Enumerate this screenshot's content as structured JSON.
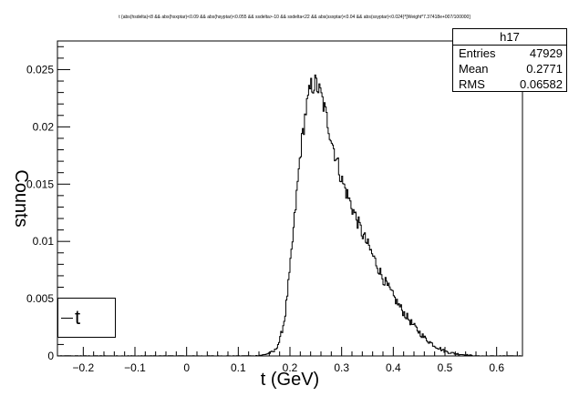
{
  "chart_data": {
    "type": "line",
    "title": "t {abs(hsdelta)<8 && abs(hsxptar)<0.09 && abs(hsyptar)<0.055 && ssdelta>-10 && ssdelta<22 && abs(ssxptar)<0.04 && abs(ssyptar)<0.024}*[Weight*7.37418e+007/100000]",
    "xlabel": "t (GeV)",
    "ylabel": "Counts",
    "xlim": [
      -0.25,
      0.65
    ],
    "ylim": [
      0,
      0.0275
    ],
    "xticks": [
      "−0.2",
      "−0.1",
      "0",
      "0.1",
      "0.2",
      "0.3",
      "0.4",
      "0.5",
      "0.6"
    ],
    "yticks": [
      "0",
      "0.005",
      "0.01",
      "0.015",
      "0.02",
      "0.025"
    ],
    "x": [
      -0.25,
      -0.2,
      -0.15,
      -0.1,
      -0.05,
      0.0,
      0.05,
      0.1,
      0.13,
      0.15,
      0.17,
      0.18,
      0.19,
      0.2,
      0.21,
      0.22,
      0.23,
      0.24,
      0.25,
      0.26,
      0.27,
      0.28,
      0.29,
      0.3,
      0.32,
      0.34,
      0.36,
      0.38,
      0.4,
      0.42,
      0.44,
      0.46,
      0.48,
      0.5,
      0.52,
      0.54,
      0.56,
      0.6,
      0.65
    ],
    "values": [
      0.0,
      0.0,
      0.0,
      0.0,
      0.0,
      0.0,
      0.0,
      0.0,
      0.0,
      0.0001,
      0.0004,
      0.0013,
      0.0033,
      0.0075,
      0.0125,
      0.0177,
      0.0212,
      0.0235,
      0.0238,
      0.0228,
      0.021,
      0.019,
      0.0172,
      0.0154,
      0.013,
      0.0107,
      0.0088,
      0.0068,
      0.0052,
      0.0038,
      0.0026,
      0.0016,
      0.0009,
      0.0004,
      0.0002,
      0.0001,
      0.0,
      0.0,
      0.0
    ],
    "grid": false,
    "legend": [
      "t"
    ],
    "legend_position": "bottom-left"
  },
  "stats": {
    "name": "h17",
    "entries_label": "Entries",
    "entries_value": "47929",
    "mean_label": "Mean",
    "mean_value": "0.2771",
    "rms_label": "RMS",
    "rms_value": "0.06582"
  }
}
